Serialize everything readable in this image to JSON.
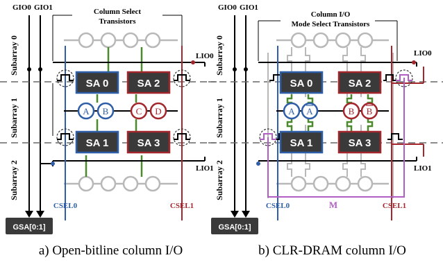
{
  "colors": {
    "blue": "#2e5ea8",
    "red": "#a3262d",
    "green": "#4a8a2a",
    "gray": "#b8b8b8",
    "purple": "#b05ec4",
    "sa_fill": "#3a3a3a",
    "dash": "#666666"
  },
  "panel_a": {
    "gio0": "GIO0",
    "gio1": "GIO1",
    "title_line1": "Column Select",
    "title_line2": "Transistors",
    "subarrays": [
      "Subarray 0",
      "Subarray 1",
      "Subarray 2"
    ],
    "sense_amps": [
      "SA 0",
      "SA 2",
      "SA 1",
      "SA 3"
    ],
    "cells": [
      "A",
      "B",
      "C",
      "D"
    ],
    "lio0": "LIO0",
    "lio1": "LIO1",
    "csel0": "CSEL0",
    "csel1": "CSEL1",
    "gsa": "GSA[0:1]",
    "caption": "a) Open-bitline column I/O"
  },
  "panel_b": {
    "gio0": "GIO0",
    "gio1": "GIO1",
    "title_line1": "Column I/O",
    "title_line2": "Mode Select Transistors",
    "subarrays": [
      "Subarray 0",
      "Subarray 1",
      "Subarray 2"
    ],
    "sense_amps": [
      "SA 0",
      "SA 2",
      "SA 1",
      "SA 3"
    ],
    "cells": [
      "A",
      "A",
      "B",
      "B"
    ],
    "lio0": "LIO0",
    "lio1": "LIO1",
    "csel0": "CSEL0",
    "csel1": "CSEL1",
    "m_label": "M",
    "gsa": "GSA[0:1]",
    "caption": "b) CLR-DRAM column I/O"
  }
}
